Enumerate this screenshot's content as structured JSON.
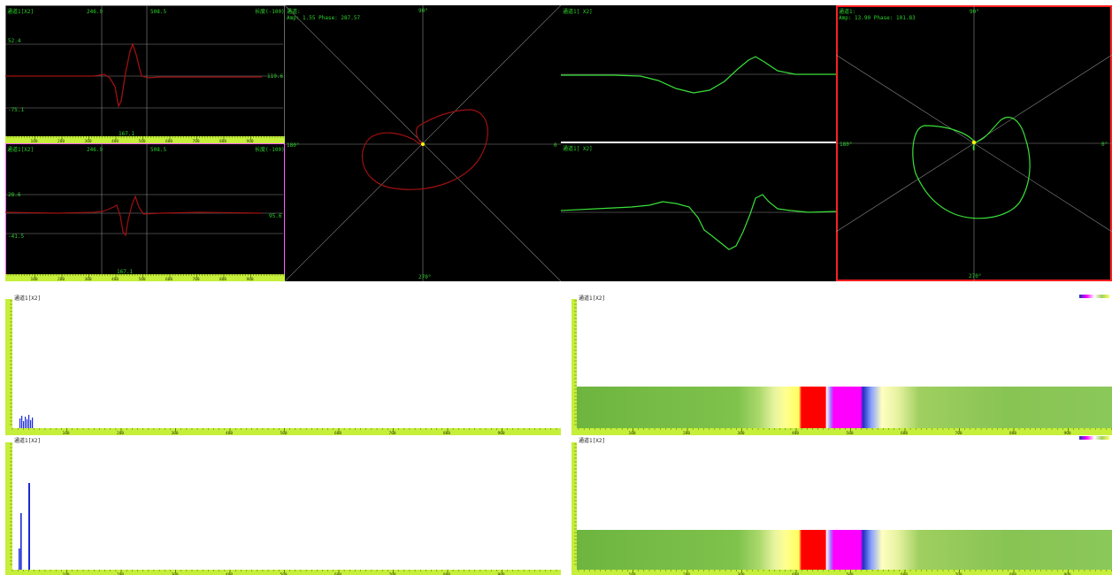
{
  "colors": {
    "panel_bg": "#000000",
    "grid": "#8a8a8a",
    "trace_red": "#a01010",
    "trace_green": "#39e039",
    "text_green": "#2bd32b",
    "ruler": "#c6ef3c",
    "ruler_tick": "#4a6a00",
    "bar_blue": "#1a2ad8",
    "strip_green": "#7dbf4a",
    "strip_red": "#ff0000",
    "strip_magenta": "#ff00ff",
    "strip_yellow": "#ffff80",
    "border_pink": "#ff60ff",
    "border_red": "#ff2020"
  },
  "trace_tl": {
    "label": "通道1[X2]",
    "c1": "246.9",
    "c2": "508.5",
    "right_label": "长度(-100)",
    "y_top": "52.4",
    "y_mid": "119.6",
    "y_bot": "-75.1",
    "bottom_value": "167.1"
  },
  "trace_bl": {
    "label": "通道1[X2]",
    "c1": "246.9",
    "c2": "508.5",
    "right_label": "长度(-100)",
    "y_top": "28.6",
    "y_mid": "95.6",
    "y_bot": "-41.5",
    "bottom_value": "167.1"
  },
  "ruler_short_ticks": [
    "100",
    "200",
    "300",
    "400",
    "500",
    "600",
    "700",
    "800",
    "900"
  ],
  "ruler_long_ticks": [
    "100",
    "200",
    "300",
    "400",
    "500",
    "600",
    "700",
    "800",
    "900"
  ],
  "polar1": {
    "label": "通道:",
    "readout": "Amp: 1.55 Phase: 287.57",
    "deg_top": "90°",
    "deg_left": "180°",
    "deg_right": "0",
    "deg_bottom": "270°"
  },
  "trace_g1": {
    "label": "通道1[ X2]"
  },
  "trace_g2": {
    "label": "通道1[ X2]"
  },
  "polar2": {
    "label": "通道1:",
    "readout": "Amp: 13.90 Phase: 101.83",
    "deg_top": "90°",
    "deg_left": "180°",
    "deg_right": "0°",
    "deg_bottom": "270°"
  },
  "bars1": {
    "label": "通道1[X2]"
  },
  "bars2": {
    "label": "通道1[X2]"
  },
  "strip1": {
    "label": "通道1[X2]"
  },
  "strip2": {
    "label": "通道1[X2]"
  }
}
